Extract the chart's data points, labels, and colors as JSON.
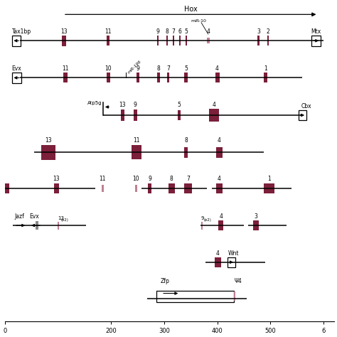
{
  "xlim": [
    0,
    620
  ],
  "ylim": [
    0,
    10.2
  ],
  "gene_color": "#7B1F3A",
  "pink_color": "#C08090",
  "gray_color": "#888888",
  "line_color": "black",
  "bg_color": "white",
  "figsize": [
    4.74,
    4.74
  ],
  "dpi": 100
}
